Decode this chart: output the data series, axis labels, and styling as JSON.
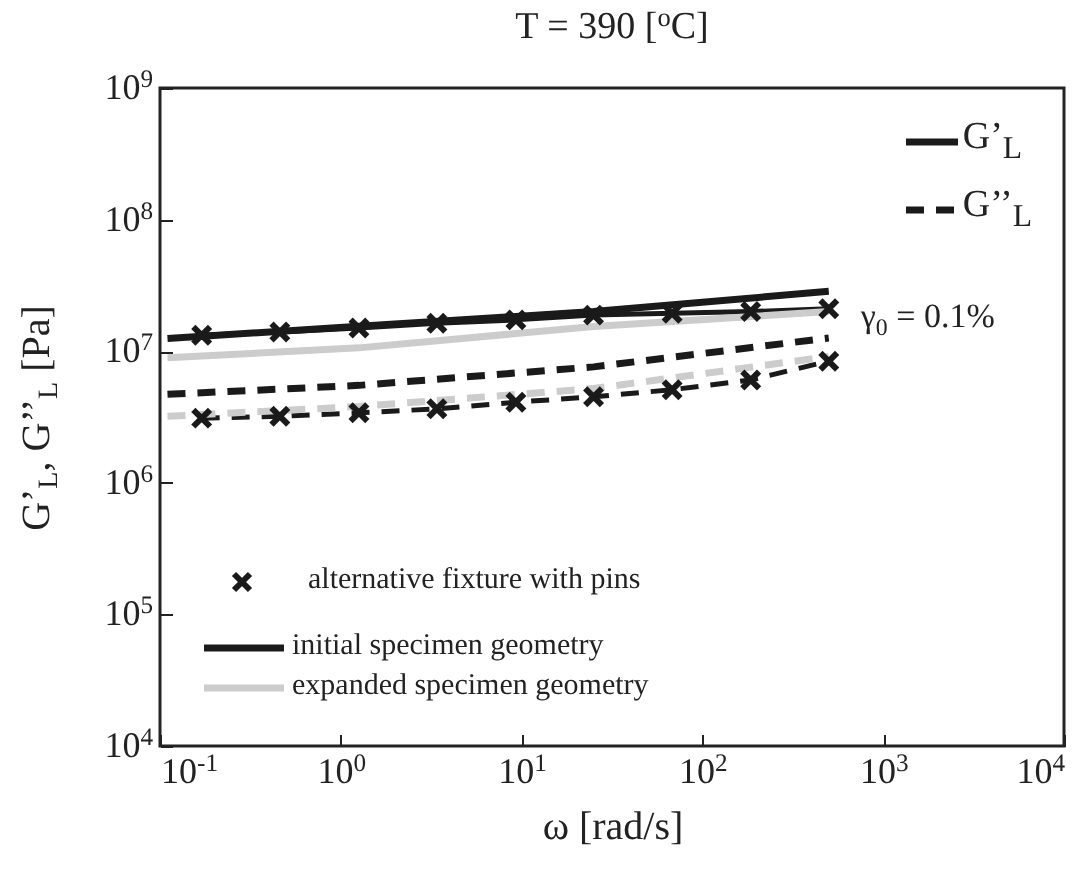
{
  "chart_data": {
    "type": "line",
    "title": "T = 390 [$^{o}$C]",
    "xlabel": "ω [rad/s]",
    "ylabel": "G’$_{L}$, G’’$_{L}$ [Pa]",
    "log": "xy",
    "grid": false,
    "legend": "bottom left",
    "xlim": [
      0.1,
      10000
    ],
    "xticks": [
      {
        "value": 0.1,
        "label": "10$^{-1}$"
      },
      {
        "value": 1,
        "label": "10$^{0}$"
      },
      {
        "value": 10,
        "label": "10$^{1}$"
      },
      {
        "value": 100,
        "label": "10$^{2}$"
      },
      {
        "value": 1000,
        "label": "10$^{3}$"
      },
      {
        "value": 10000,
        "label": "10$^{4}$"
      }
    ],
    "ylim": [
      10000,
      1000000000
    ],
    "yticks": [
      {
        "value": 10000,
        "label": "10$^{4}$"
      },
      {
        "value": 100000,
        "label": "10$^{5}$"
      },
      {
        "value": 1000000,
        "label": "10$^{6}$"
      },
      {
        "value": 10000000,
        "label": "10$^{7}$"
      },
      {
        "value": 100000000,
        "label": "10$^{8}$"
      },
      {
        "value": 1000000000,
        "label": "10$^{9}$"
      }
    ],
    "annotations": [
      "G’$_{L}$",
      "G’’$_{L}$",
      "γ$_{0}$ = 0.1%"
    ],
    "series": [
      {
        "name": "alternative fixture with pins",
        "marker": "cross",
        "line_style": "solid",
        "color": "#1a1a1a",
        "x": [
          0.17,
          0.46,
          1.26,
          3.4,
          9.3,
          25,
          68,
          185,
          500
        ],
        "values": [
          13200000,
          14000000,
          15000000,
          16300000,
          17300000,
          18800000,
          19400000,
          20000000,
          21000000
        ]
      },
      {
        "marker": "cross",
        "line_style": "dashed",
        "color": "#1a1a1a",
        "x": [
          0.17,
          0.46,
          1.26,
          3.4,
          9.3,
          25,
          68,
          185,
          500
        ],
        "values": [
          3100000,
          3200000,
          3400000,
          3650000,
          4100000,
          4500000,
          5100000,
          6050000,
          8400000
        ]
      },
      {
        "name": "initial specimen geometry",
        "line_style": "solid",
        "color": "#1a1a1a",
        "x": [
          0.11,
          1.26,
          25,
          500
        ],
        "values": [
          12500000,
          15500000,
          20000000,
          28500000
        ]
      },
      {
        "name": "expanded specimen geometry",
        "line_style": "solid",
        "color": "#cccccc",
        "x": [
          0.11,
          1.26,
          25,
          500
        ],
        "values": [
          8900000,
          10600000,
          15400000,
          20000000
        ]
      },
      {
        "line_style": "dashed",
        "color": "#1a1a1a",
        "x": [
          0.11,
          1.26,
          25,
          500
        ],
        "values": [
          4700000,
          5500000,
          7600000,
          12600000
        ]
      },
      {
        "line_style": "dashed",
        "color": "#cccccc",
        "x": [
          0.11,
          1.26,
          25,
          500
        ],
        "values": [
          3200000,
          3800000,
          5200000,
          9100000
        ]
      }
    ]
  }
}
